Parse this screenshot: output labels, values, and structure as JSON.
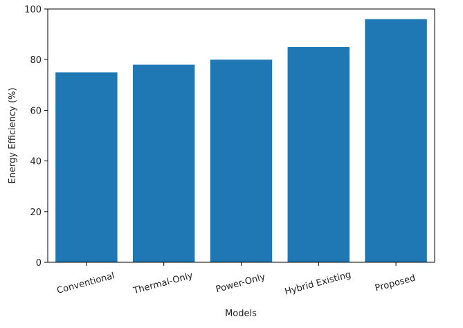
{
  "chart_data": {
    "type": "bar",
    "title": "",
    "xlabel": "Models",
    "ylabel": "Energy Efficiency (%)",
    "categories": [
      "Conventional",
      "Thermal-Only",
      "Power-Only",
      "Hybrid Existing",
      "Proposed"
    ],
    "values": [
      75,
      78,
      80,
      85,
      96
    ],
    "ylim": [
      0,
      100
    ],
    "yticks": [
      0,
      20,
      40,
      60,
      80,
      100
    ],
    "grid": false,
    "legend": "none",
    "bar_color": "#1f77b4"
  }
}
